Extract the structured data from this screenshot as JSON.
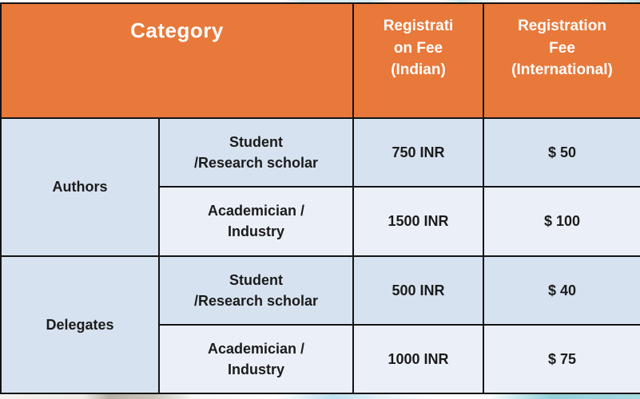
{
  "table": {
    "header": {
      "category": "Category",
      "fee_indian": "Registrati\non Fee\n(Indian)",
      "fee_international": "Registration\nFee\n(International)"
    },
    "groups": [
      {
        "name": "Authors",
        "rows": [
          {
            "subcategory": "Student\n/Research scholar",
            "fee_indian": "750 INR",
            "fee_international": "$ 50"
          },
          {
            "subcategory": "Academician /\nIndustry",
            "fee_indian": "1500 INR",
            "fee_international": "$ 100"
          }
        ]
      },
      {
        "name": "Delegates",
        "rows": [
          {
            "subcategory": "Student\n/Research scholar",
            "fee_indian": "500 INR",
            "fee_international": "$ 40"
          },
          {
            "subcategory": "Academician /\nIndustry",
            "fee_indian": "1000 INR",
            "fee_international": "$ 75"
          }
        ]
      }
    ]
  },
  "colors": {
    "header_bg": "#E8793B",
    "header_text": "#FFFFFF",
    "row_light": "#D7E2F0",
    "row_lighter": "#EBF0F8",
    "border": "#141414",
    "body_text": "#1B1B1B"
  }
}
